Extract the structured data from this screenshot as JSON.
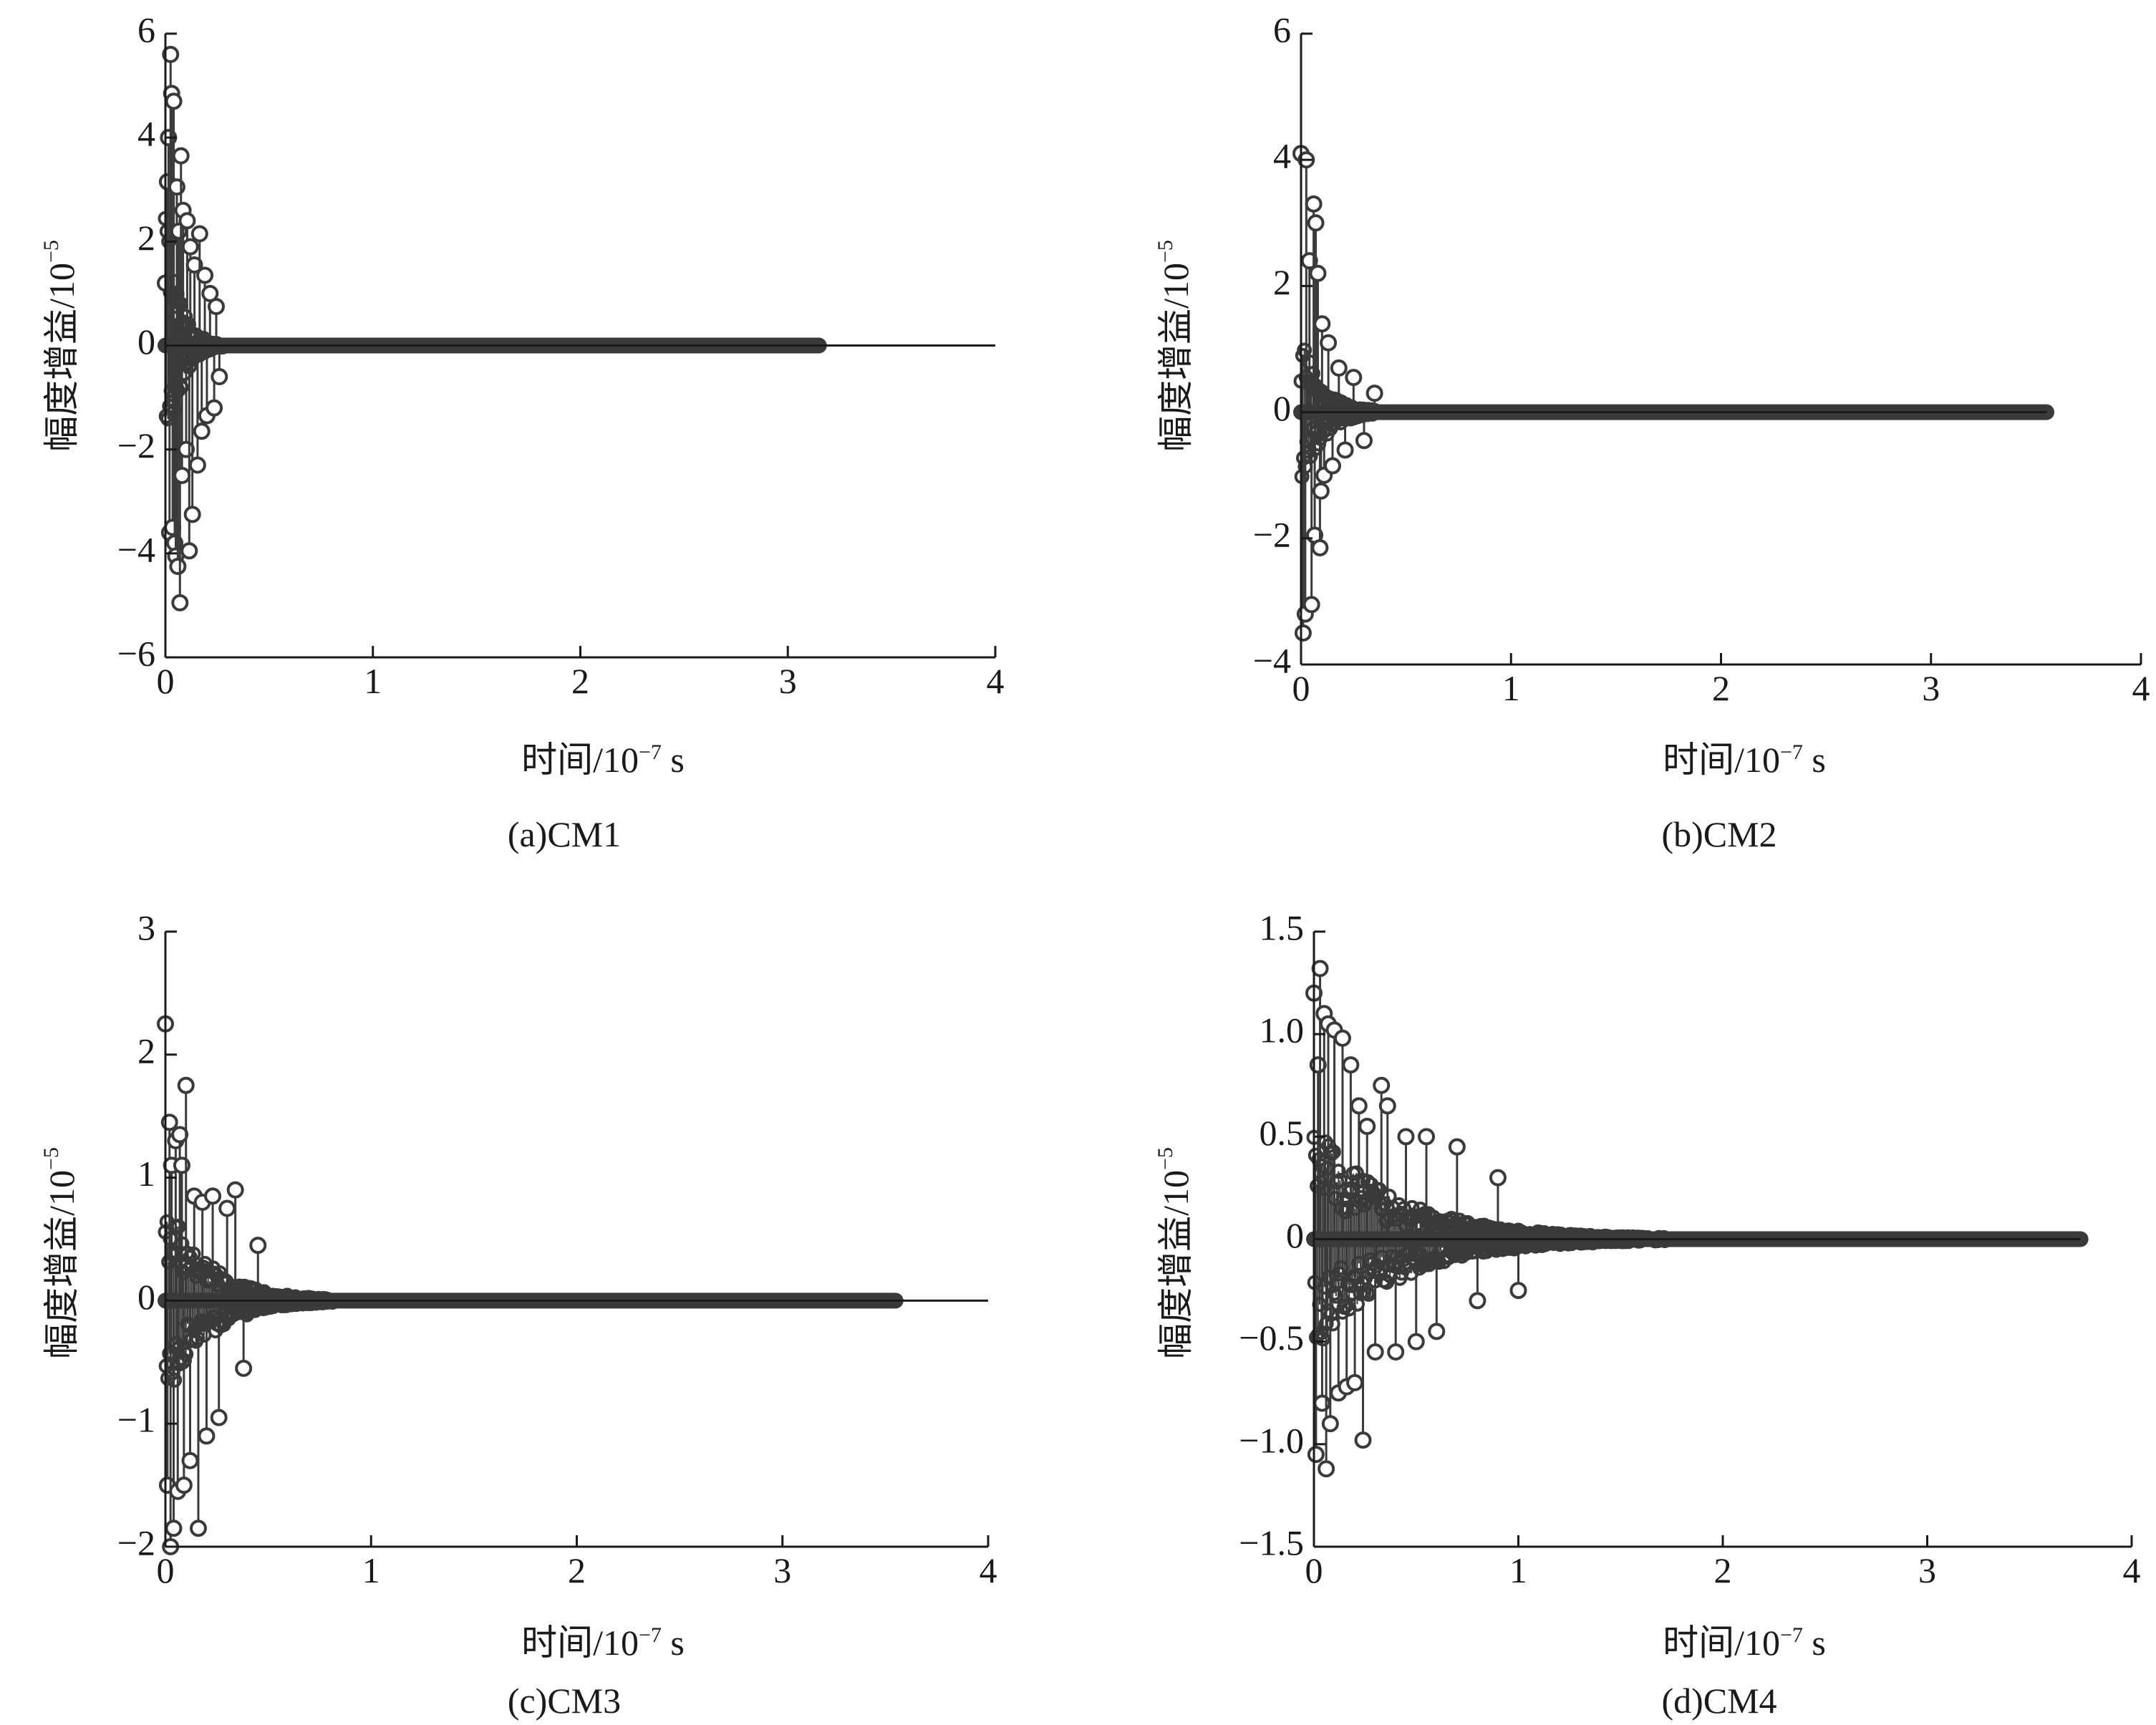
{
  "figure": {
    "background": "#ffffff",
    "ink_color": "#3a3a3a"
  },
  "chart_data": [
    {
      "type": "stem",
      "caption": "(a)CM1",
      "xlabel": "时间/10",
      "xlabel_exp": "−7",
      "xlabel_unit": " s",
      "ylabel": "幅度增益/10",
      "ylabel_exp": "−5",
      "xlim": [
        0,
        4
      ],
      "ylim": [
        -6,
        6
      ],
      "xticks": [
        0,
        1,
        2,
        3,
        4
      ],
      "yticks": [
        -6,
        -4,
        -2,
        0,
        2,
        4,
        6
      ],
      "ytick_labels": [
        "−6",
        "−4",
        "−2",
        "0",
        "2",
        "4",
        "6"
      ],
      "data_end_x": 3.15,
      "zero_line_end_x": 4.0,
      "decay_tau": 0.06,
      "envelope_amplitude": 3.0,
      "samples": [
        [
          0.0,
          1.2
        ],
        [
          0.01,
          3.15
        ],
        [
          0.015,
          4.0
        ],
        [
          0.02,
          -3.6
        ],
        [
          0.025,
          5.6
        ],
        [
          0.03,
          4.85
        ],
        [
          0.035,
          -3.5
        ],
        [
          0.04,
          4.7
        ],
        [
          0.045,
          -3.8
        ],
        [
          0.05,
          -4.05
        ],
        [
          0.055,
          3.05
        ],
        [
          0.06,
          -4.25
        ],
        [
          0.065,
          2.2
        ],
        [
          0.07,
          -4.95
        ],
        [
          0.075,
          3.65
        ],
        [
          0.08,
          -2.5
        ],
        [
          0.085,
          2.6
        ],
        [
          0.1,
          -2.0
        ],
        [
          0.105,
          2.4
        ],
        [
          0.115,
          -3.95
        ],
        [
          0.12,
          1.9
        ],
        [
          0.13,
          -3.25
        ],
        [
          0.14,
          1.55
        ],
        [
          0.155,
          -2.3
        ],
        [
          0.165,
          2.15
        ],
        [
          0.175,
          -1.65
        ],
        [
          0.19,
          1.35
        ],
        [
          0.2,
          -1.35
        ],
        [
          0.215,
          1.0
        ],
        [
          0.235,
          -1.2
        ],
        [
          0.245,
          0.75
        ],
        [
          0.26,
          -0.6
        ]
      ]
    },
    {
      "type": "stem",
      "caption": "(b)CM2",
      "xlabel": "时间/10",
      "xlabel_exp": "−7",
      "xlabel_unit": " s",
      "ylabel": "幅度增益/10",
      "ylabel_exp": "−5",
      "xlim": [
        0,
        4
      ],
      "ylim": [
        -4,
        6
      ],
      "xticks": [
        0,
        1,
        2,
        3,
        4
      ],
      "yticks": [
        -4,
        -2,
        0,
        2,
        4,
        6
      ],
      "ytick_labels": [
        "−4",
        "−2",
        "0",
        "2",
        "4",
        "6"
      ],
      "data_end_x": 3.55,
      "zero_line_end_x": 3.55,
      "decay_tau": 0.1,
      "envelope_amplitude": 1.2,
      "samples": [
        [
          0.0,
          4.1
        ],
        [
          0.01,
          -3.5
        ],
        [
          0.02,
          -3.2
        ],
        [
          0.025,
          4.0
        ],
        [
          0.04,
          2.4
        ],
        [
          0.05,
          -3.05
        ],
        [
          0.06,
          3.3
        ],
        [
          0.065,
          -1.95
        ],
        [
          0.07,
          3.0
        ],
        [
          0.08,
          2.2
        ],
        [
          0.09,
          -2.15
        ],
        [
          0.095,
          -1.25
        ],
        [
          0.1,
          1.4
        ],
        [
          0.11,
          -1.0
        ],
        [
          0.13,
          1.1
        ],
        [
          0.15,
          -0.85
        ],
        [
          0.18,
          0.7
        ],
        [
          0.21,
          -0.6
        ],
        [
          0.25,
          0.55
        ],
        [
          0.3,
          -0.45
        ],
        [
          0.35,
          0.3
        ]
      ]
    },
    {
      "type": "stem",
      "caption": "(c)CM3",
      "xlabel": "时间/10",
      "xlabel_exp": "−7",
      "xlabel_unit": " s",
      "ylabel": "幅度增益/10",
      "ylabel_exp": "−5",
      "xlim": [
        0,
        4
      ],
      "ylim": [
        -2,
        3
      ],
      "xticks": [
        0,
        1,
        2,
        3,
        4
      ],
      "yticks": [
        -2,
        -1,
        0,
        1,
        2,
        3
      ],
      "ytick_labels": [
        "−2",
        "−1",
        "0",
        "1",
        "2",
        "3"
      ],
      "data_end_x": 3.55,
      "zero_line_end_x": 4.0,
      "decay_tau": 0.2,
      "envelope_amplitude": 0.85,
      "samples": [
        [
          0.0,
          2.25
        ],
        [
          0.01,
          -1.5
        ],
        [
          0.02,
          1.45
        ],
        [
          0.025,
          -2.0
        ],
        [
          0.03,
          1.1
        ],
        [
          0.04,
          -1.85
        ],
        [
          0.05,
          1.3
        ],
        [
          0.06,
          -1.55
        ],
        [
          0.07,
          1.35
        ],
        [
          0.08,
          1.1
        ],
        [
          0.09,
          -1.5
        ],
        [
          0.1,
          1.75
        ],
        [
          0.12,
          -1.3
        ],
        [
          0.14,
          0.85
        ],
        [
          0.16,
          -1.85
        ],
        [
          0.18,
          0.8
        ],
        [
          0.2,
          -1.1
        ],
        [
          0.23,
          0.85
        ],
        [
          0.26,
          -0.95
        ],
        [
          0.3,
          0.75
        ],
        [
          0.34,
          0.9
        ],
        [
          0.38,
          -0.55
        ],
        [
          0.45,
          0.45
        ]
      ]
    },
    {
      "type": "stem",
      "caption": "(d)CM4",
      "xlabel": "时间/10",
      "xlabel_exp": "−7",
      "xlabel_unit": " s",
      "ylabel": "幅度增益/10",
      "ylabel_exp": "−5",
      "xlim": [
        0,
        4
      ],
      "ylim": [
        -1.5,
        1.5
      ],
      "xticks": [
        0,
        1,
        2,
        3,
        4
      ],
      "yticks": [
        -1.5,
        -1.0,
        -0.5,
        0,
        0.5,
        1.0,
        1.5
      ],
      "ytick_labels": [
        "−1.5",
        "−1.0",
        "−0.5",
        "0",
        "0.5",
        "1.0",
        "1.5"
      ],
      "data_end_x": 3.75,
      "zero_line_end_x": 3.75,
      "decay_tau": 0.4,
      "envelope_amplitude": 0.55,
      "samples": [
        [
          0.0,
          1.2
        ],
        [
          0.01,
          -1.05
        ],
        [
          0.02,
          0.85
        ],
        [
          0.03,
          1.32
        ],
        [
          0.04,
          -0.8
        ],
        [
          0.05,
          1.1
        ],
        [
          0.06,
          -1.12
        ],
        [
          0.07,
          1.05
        ],
        [
          0.08,
          -0.9
        ],
        [
          0.1,
          1.02
        ],
        [
          0.12,
          -0.75
        ],
        [
          0.14,
          0.98
        ],
        [
          0.16,
          -0.72
        ],
        [
          0.18,
          0.85
        ],
        [
          0.2,
          -0.7
        ],
        [
          0.22,
          0.65
        ],
        [
          0.24,
          -0.98
        ],
        [
          0.26,
          0.55
        ],
        [
          0.3,
          -0.55
        ],
        [
          0.33,
          0.75
        ],
        [
          0.36,
          0.65
        ],
        [
          0.4,
          -0.55
        ],
        [
          0.45,
          0.5
        ],
        [
          0.5,
          -0.5
        ],
        [
          0.55,
          0.5
        ],
        [
          0.6,
          -0.45
        ],
        [
          0.7,
          0.45
        ],
        [
          0.8,
          -0.3
        ],
        [
          0.9,
          0.3
        ],
        [
          1.0,
          -0.25
        ]
      ]
    }
  ]
}
